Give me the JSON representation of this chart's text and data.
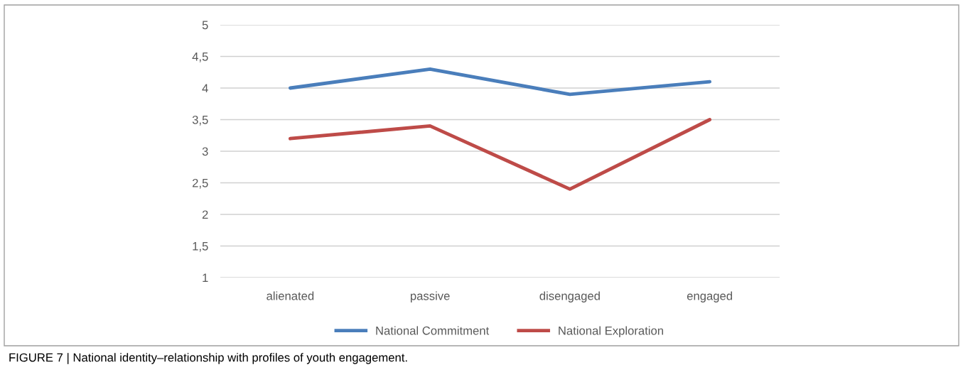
{
  "chart_data": {
    "type": "line",
    "categories": [
      "alienated",
      "passive",
      "disengaged",
      "engaged"
    ],
    "series": [
      {
        "name": "National Commitment",
        "color": "#4a7ebb",
        "values": [
          4.0,
          4.3,
          3.9,
          4.1
        ]
      },
      {
        "name": "National Exploration",
        "color": "#be4b48",
        "values": [
          3.2,
          3.4,
          2.4,
          3.5
        ]
      }
    ],
    "ylim": [
      1,
      5
    ],
    "yticks": [
      1,
      {
        "value": 1.5,
        "label": "1,5"
      },
      2,
      {
        "value": 2.5,
        "label": "2,5"
      },
      3,
      {
        "value": 3.5,
        "label": "3,5"
      },
      4,
      {
        "value": 4.5,
        "label": "4,5"
      },
      5
    ],
    "grid": "y",
    "legend": "bottom",
    "marker": "none",
    "line_style": "solid",
    "annotations": [
      "FIGURE 7 | National identity–relationship with profiles of youth engagement."
    ]
  }
}
